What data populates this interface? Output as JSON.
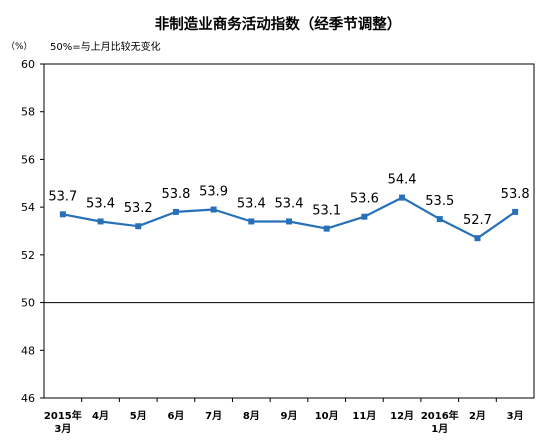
{
  "chart_data": {
    "type": "line",
    "title": "非制造业商务活动指数（经季节调整）",
    "y_unit": "（%）",
    "note": "50%=与上月比较无变化",
    "categories": [
      [
        "2015年",
        "3月"
      ],
      [
        "4月"
      ],
      [
        "5月"
      ],
      [
        "6月"
      ],
      [
        "7月"
      ],
      [
        "8月"
      ],
      [
        "9月"
      ],
      [
        "10月"
      ],
      [
        "11月"
      ],
      [
        "12月"
      ],
      [
        "2016年",
        "1月"
      ],
      [
        "2月"
      ],
      [
        "3月"
      ]
    ],
    "values": [
      53.7,
      53.4,
      53.2,
      53.8,
      53.9,
      53.4,
      53.4,
      53.1,
      53.6,
      54.4,
      53.5,
      52.7,
      53.8
    ],
    "data_labels": [
      "53.7",
      "53.4",
      "53.2",
      "53.8",
      "53.9",
      "53.4",
      "53.4",
      "53.1",
      "53.6",
      "54.4",
      "53.5",
      "52.7",
      "53.8"
    ],
    "yticks": [
      46,
      48,
      50,
      52,
      54,
      56,
      58,
      60
    ],
    "ylim": [
      46,
      60
    ],
    "reference_line": 50,
    "grid": false,
    "legend": "none",
    "series_color": "#2870B8"
  }
}
